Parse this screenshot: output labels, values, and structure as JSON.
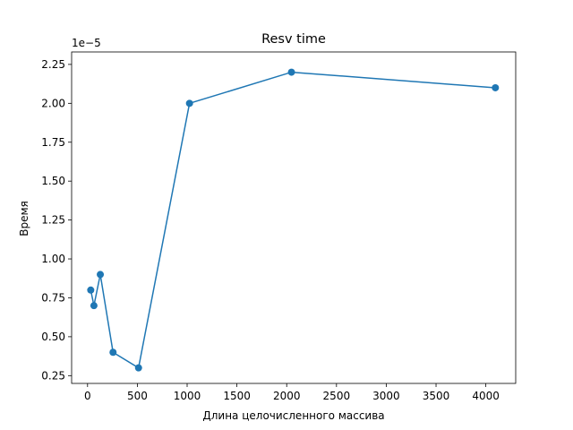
{
  "chart_data": {
    "type": "line",
    "title": "Resv time",
    "xlabel": "Длина целочисленного массива",
    "ylabel": "Время",
    "y_offset_label": "1e−5",
    "y_scale_factor": 1e-05,
    "xlim": [
      -160,
      4300
    ],
    "ylim": [
      2e-06,
      2.33e-05
    ],
    "x_ticks": [
      0,
      500,
      1000,
      1500,
      2000,
      2500,
      3000,
      3500,
      4000
    ],
    "x_tick_labels": [
      "0",
      "500",
      "1000",
      "1500",
      "2000",
      "2500",
      "3000",
      "3500",
      "4000"
    ],
    "y_ticks": [
      2.5e-06,
      5e-06,
      7.5e-06,
      1e-05,
      1.25e-05,
      1.5e-05,
      1.75e-05,
      2e-05,
      2.25e-05
    ],
    "y_tick_labels": [
      "0.25",
      "0.50",
      "0.75",
      "1.00",
      "1.25",
      "1.50",
      "1.75",
      "2.00",
      "2.25"
    ],
    "grid": false,
    "color": "#1f77b4",
    "marker": "circle",
    "series": [
      {
        "x": [
          32,
          64,
          128,
          256,
          512,
          1024,
          2048,
          4096
        ],
        "y": [
          8e-06,
          7e-06,
          9e-06,
          4e-06,
          3e-06,
          2e-05,
          2.2e-05,
          2.1e-05
        ]
      }
    ]
  }
}
